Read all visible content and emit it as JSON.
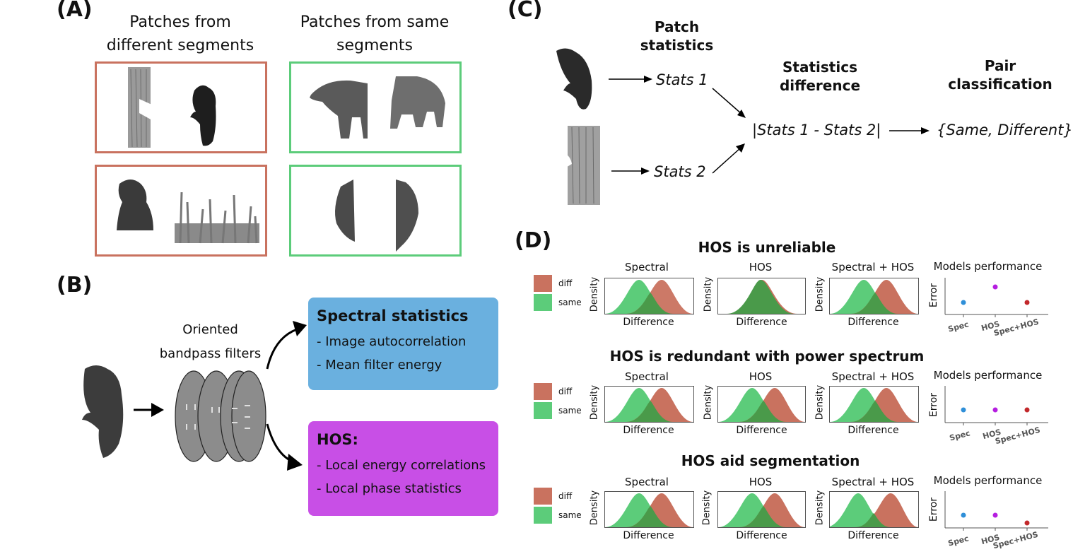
{
  "panel_labels": {
    "a": "(A)",
    "b": "(B)",
    "c": "(C)",
    "d": "(D)"
  },
  "panelA": {
    "diff_heading": "Patches from different segments",
    "same_heading": "Patches from same segments"
  },
  "panelB": {
    "filters_label": "Oriented bandpass filters",
    "spectral_title": "Spectral statistics",
    "spectral_items": [
      "- Image autocorrelation",
      "- Mean filter energy"
    ],
    "hos_title": "HOS:",
    "hos_items": [
      "- Local energy correlations",
      "- Local phase statistics"
    ],
    "colors": {
      "spectral_box": "#6ab0df",
      "hos_box": "#c84fe6"
    }
  },
  "panelC": {
    "patch_stats_heading": "Patch statistics",
    "stats1": "Stats 1",
    "stats2": "Stats 2",
    "diff_heading": "Statistics difference",
    "diff_expr": "|Stats 1 - Stats 2|",
    "pair_heading": "Pair classification",
    "pair_result": "{Same, Different}"
  },
  "panelD": {
    "legend": {
      "diff": "diff",
      "same": "same"
    },
    "colors": {
      "diff": "#c9725f",
      "same": "#5ccc7a",
      "overlap": "#4a9a4a",
      "spec_point": "#2f8fd8",
      "hos_point": "#b51ee0",
      "spechos_point": "#c2282b"
    },
    "plot_labels": {
      "spectral": "Spectral",
      "hos": "HOS",
      "spectral_hos": "Spectral + HOS",
      "models": "Models performance",
      "density": "Density",
      "difference": "Difference",
      "error": "Error"
    },
    "model_ticks": [
      "Spec",
      "HOS",
      "Spec+HOS"
    ],
    "rows": [
      {
        "title": "HOS is unreliable",
        "errors": [
          0.3,
          0.9,
          0.3
        ]
      },
      {
        "title": "HOS is redundant with power spectrum",
        "errors": [
          0.3,
          0.3,
          0.3
        ]
      },
      {
        "title": "HOS aid segmentation",
        "errors": [
          0.5,
          0.5,
          0.15
        ]
      }
    ]
  }
}
